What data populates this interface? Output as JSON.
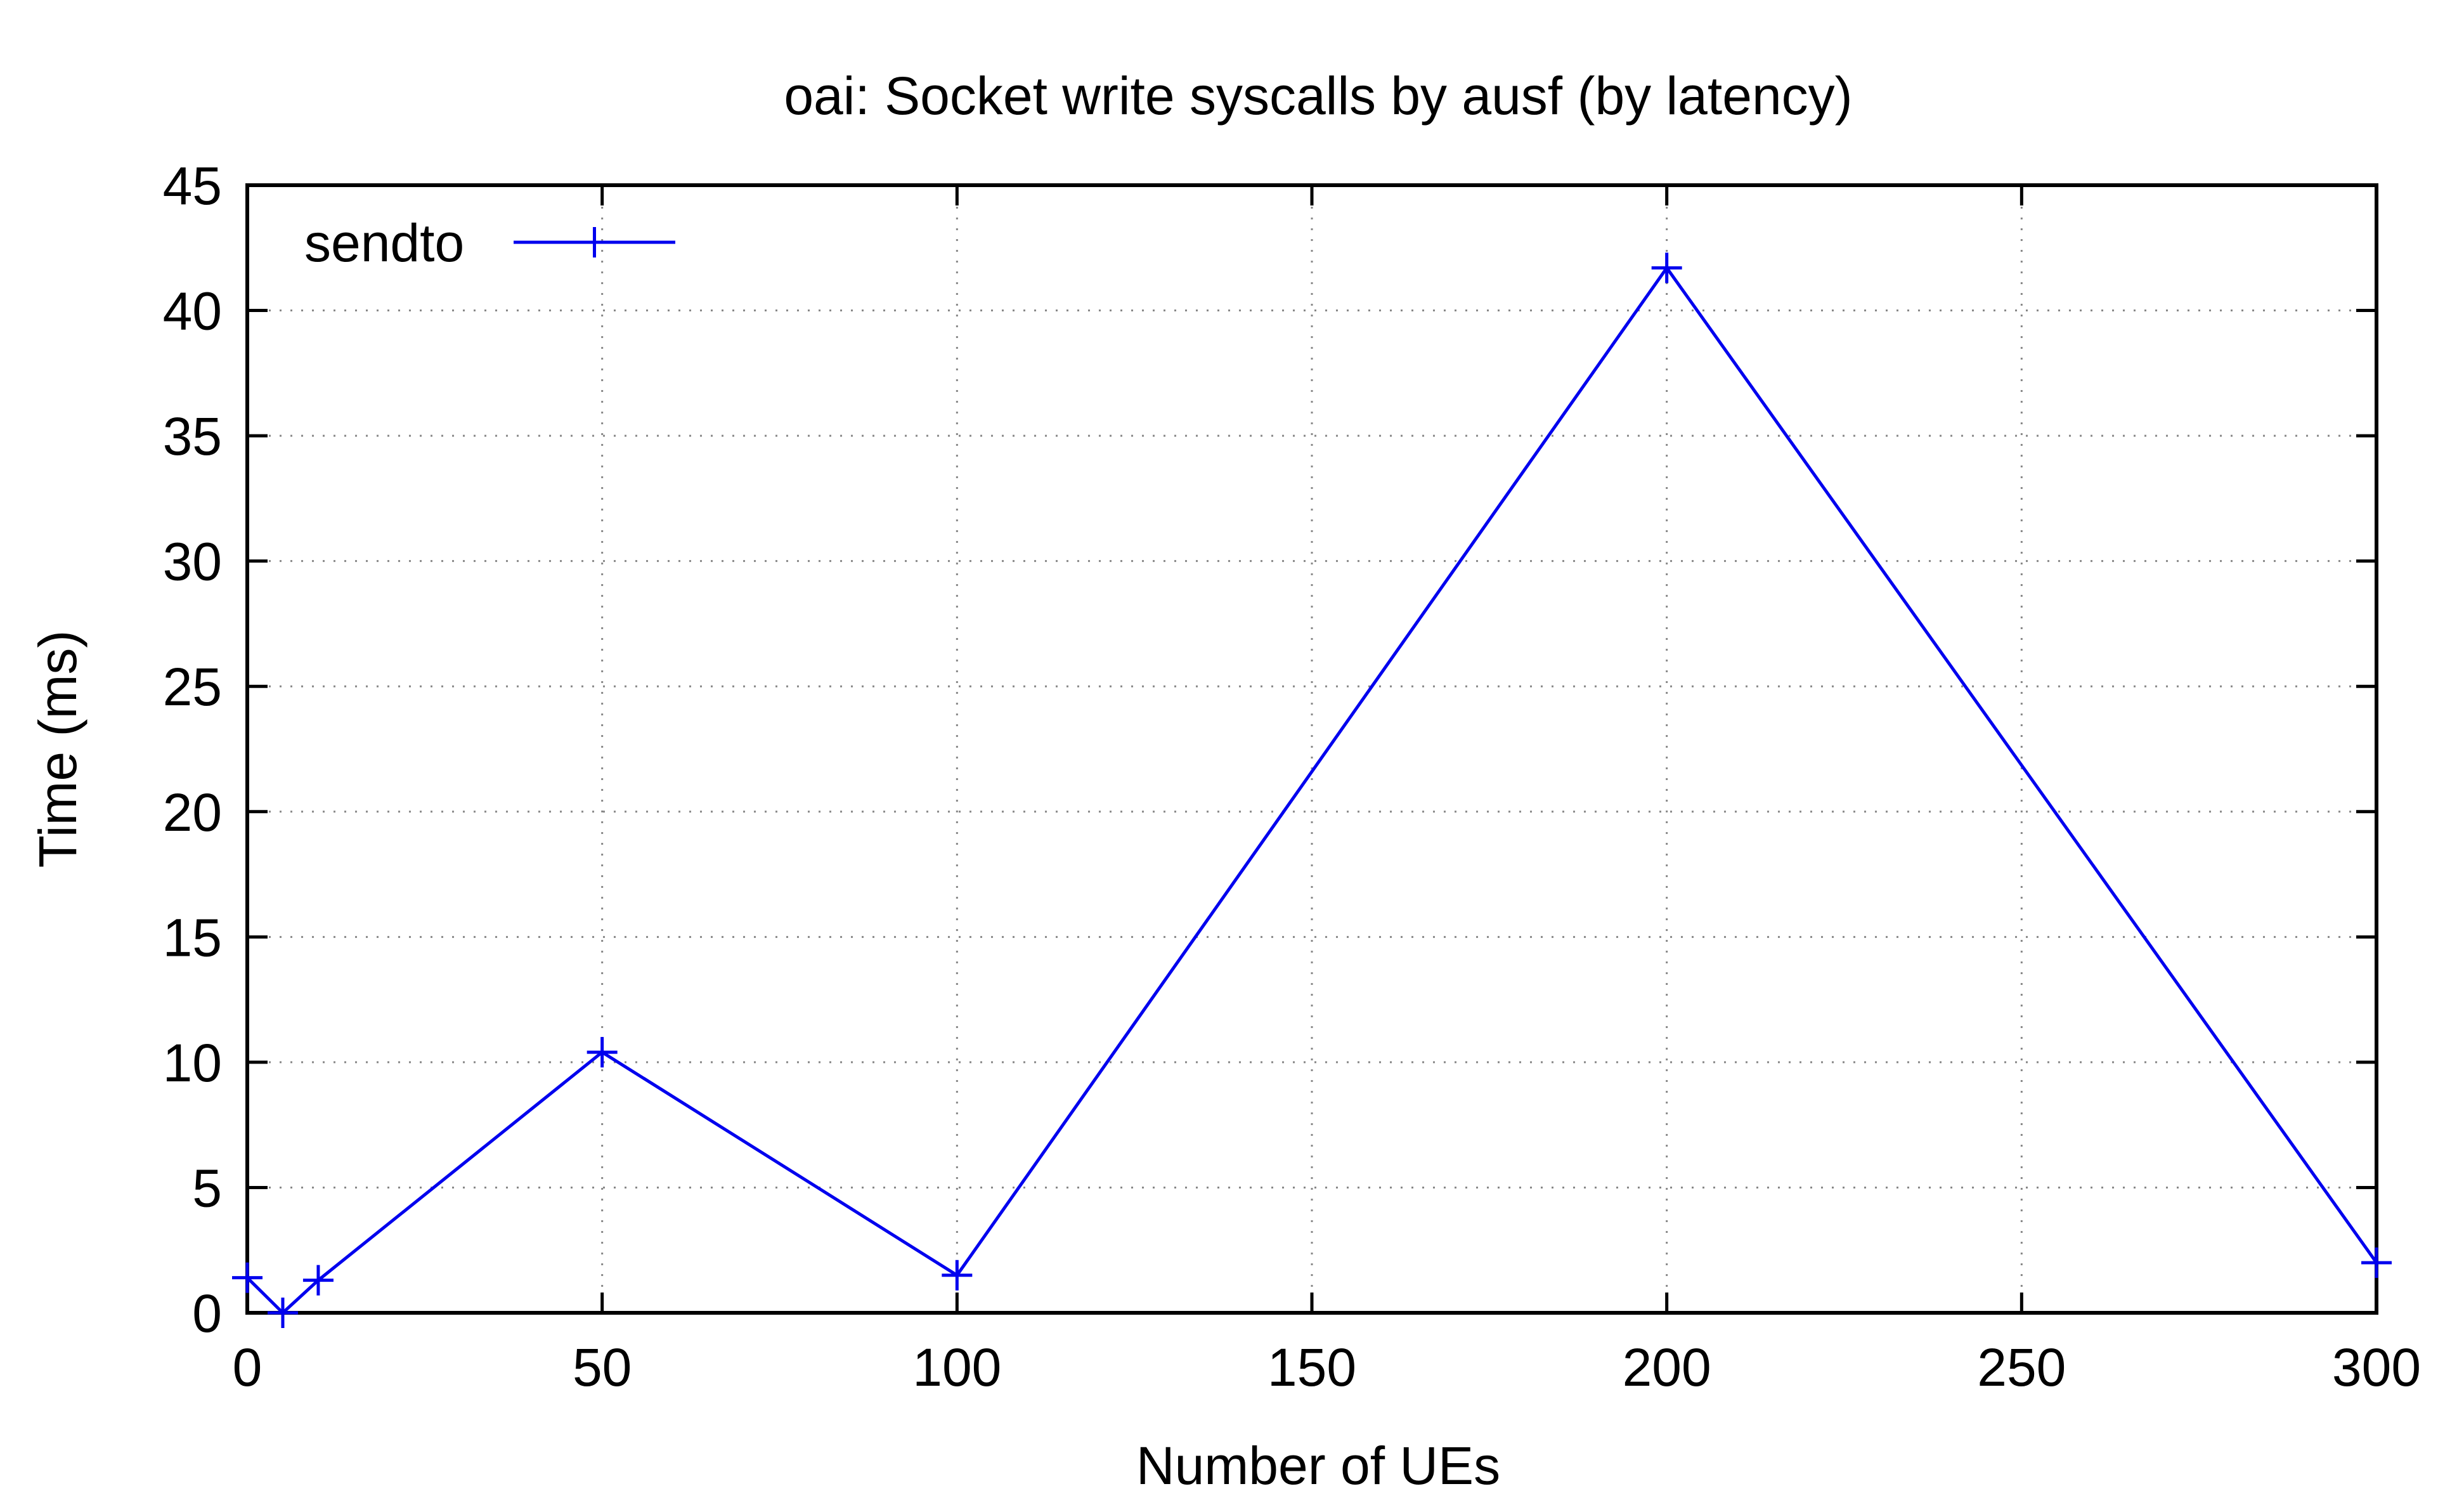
{
  "chart_data": {
    "type": "line",
    "title": "oai: Socket write syscalls by ausf (by latency)",
    "xlabel": "Number of UEs",
    "ylabel": "Time (ms)",
    "xlim": [
      0,
      300
    ],
    "ylim": [
      0,
      45
    ],
    "xticks": [
      0,
      50,
      100,
      150,
      200,
      250,
      300
    ],
    "yticks": [
      0,
      5,
      10,
      15,
      20,
      25,
      30,
      35,
      40,
      45
    ],
    "grid": true,
    "legend_position": "top-left",
    "series": [
      {
        "name": "sendto",
        "color": "#0000ee",
        "marker": "plus",
        "x": [
          0,
          5,
          10,
          50,
          100,
          200,
          300
        ],
        "y": [
          1.4,
          0.0,
          1.3,
          10.4,
          1.5,
          41.7,
          2.0
        ]
      }
    ]
  }
}
